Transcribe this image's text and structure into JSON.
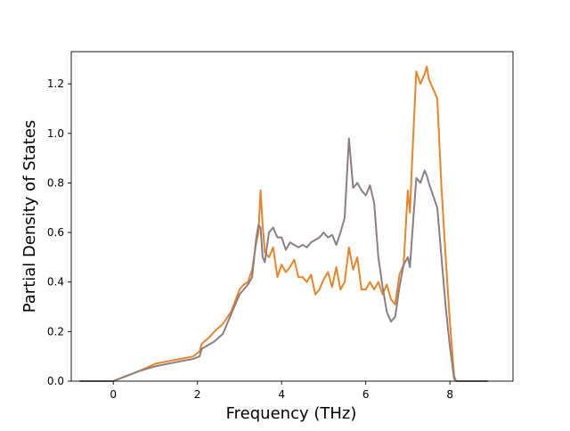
{
  "chart_data": {
    "type": "line",
    "title": "",
    "xlabel": "Frequency (THz)",
    "ylabel": "Partial Density of States",
    "xlim": [
      -1.0,
      9.5
    ],
    "ylim": [
      0.0,
      1.33
    ],
    "xticks": [
      0,
      2,
      4,
      6,
      8
    ],
    "yticks": [
      0.0,
      0.2,
      0.4,
      0.6,
      0.8,
      1.0,
      1.2
    ],
    "xtick_labels": [
      "0",
      "2",
      "4",
      "6",
      "8"
    ],
    "ytick_labels": [
      "0.0",
      "0.2",
      "0.4",
      "0.6",
      "0.8",
      "1.0",
      "1.2"
    ],
    "grid": false,
    "legend": "none",
    "series": [
      {
        "color": "#e8842a",
        "x": [
          -0.8,
          0.0,
          0.3,
          0.6,
          1.0,
          1.3,
          1.6,
          1.9,
          2.05,
          2.1,
          2.3,
          2.4,
          2.6,
          2.8,
          3.0,
          3.1,
          3.2,
          3.3,
          3.4,
          3.45,
          3.5,
          3.55,
          3.6,
          3.7,
          3.8,
          3.9,
          4.0,
          4.1,
          4.2,
          4.3,
          4.4,
          4.5,
          4.6,
          4.7,
          4.8,
          4.9,
          5.0,
          5.1,
          5.2,
          5.3,
          5.4,
          5.5,
          5.6,
          5.7,
          5.8,
          5.9,
          6.0,
          6.1,
          6.2,
          6.3,
          6.4,
          6.5,
          6.6,
          6.7,
          6.8,
          6.9,
          7.0,
          7.05,
          7.1,
          7.2,
          7.3,
          7.4,
          7.45,
          7.5,
          7.6,
          7.7,
          7.8,
          7.9,
          8.0,
          8.1,
          8.15,
          8.3,
          8.9
        ],
        "y": [
          0.0,
          0.0,
          0.02,
          0.04,
          0.07,
          0.08,
          0.09,
          0.1,
          0.12,
          0.15,
          0.18,
          0.2,
          0.23,
          0.28,
          0.37,
          0.39,
          0.4,
          0.45,
          0.56,
          0.6,
          0.77,
          0.63,
          0.52,
          0.5,
          0.54,
          0.42,
          0.47,
          0.44,
          0.46,
          0.49,
          0.42,
          0.42,
          0.4,
          0.43,
          0.35,
          0.37,
          0.41,
          0.44,
          0.38,
          0.46,
          0.37,
          0.4,
          0.54,
          0.45,
          0.5,
          0.37,
          0.37,
          0.4,
          0.37,
          0.4,
          0.35,
          0.39,
          0.33,
          0.31,
          0.43,
          0.47,
          0.77,
          0.68,
          0.88,
          1.25,
          1.2,
          1.24,
          1.27,
          1.22,
          1.18,
          1.14,
          0.78,
          0.5,
          0.24,
          0.02,
          0.0,
          0.0,
          0.0
        ]
      },
      {
        "color": "#8c7f80",
        "x": [
          -0.8,
          0.0,
          0.3,
          0.6,
          1.0,
          1.3,
          1.6,
          1.9,
          2.05,
          2.1,
          2.3,
          2.4,
          2.6,
          2.8,
          3.0,
          3.1,
          3.2,
          3.3,
          3.4,
          3.45,
          3.5,
          3.55,
          3.6,
          3.7,
          3.8,
          3.9,
          4.0,
          4.1,
          4.2,
          4.3,
          4.4,
          4.5,
          4.6,
          4.7,
          4.8,
          4.9,
          5.0,
          5.1,
          5.2,
          5.3,
          5.4,
          5.5,
          5.6,
          5.7,
          5.8,
          5.9,
          6.0,
          6.1,
          6.2,
          6.3,
          6.4,
          6.5,
          6.6,
          6.7,
          6.8,
          6.9,
          7.0,
          7.05,
          7.1,
          7.2,
          7.3,
          7.4,
          7.45,
          7.5,
          7.6,
          7.7,
          7.8,
          7.9,
          8.0,
          8.1,
          8.15,
          8.3,
          8.9
        ],
        "y": [
          0.0,
          0.0,
          0.02,
          0.04,
          0.06,
          0.07,
          0.08,
          0.09,
          0.1,
          0.13,
          0.15,
          0.16,
          0.19,
          0.27,
          0.35,
          0.37,
          0.39,
          0.42,
          0.58,
          0.63,
          0.62,
          0.5,
          0.48,
          0.6,
          0.62,
          0.58,
          0.58,
          0.53,
          0.56,
          0.55,
          0.54,
          0.55,
          0.54,
          0.56,
          0.57,
          0.58,
          0.6,
          0.58,
          0.59,
          0.55,
          0.6,
          0.66,
          0.98,
          0.78,
          0.8,
          0.77,
          0.75,
          0.79,
          0.72,
          0.5,
          0.38,
          0.28,
          0.24,
          0.26,
          0.38,
          0.47,
          0.5,
          0.46,
          0.58,
          0.82,
          0.8,
          0.85,
          0.83,
          0.8,
          0.75,
          0.7,
          0.5,
          0.3,
          0.14,
          0.01,
          0.0,
          0.0,
          0.0
        ]
      }
    ]
  }
}
